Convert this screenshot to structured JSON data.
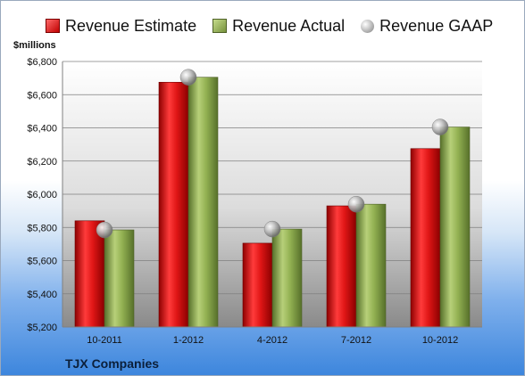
{
  "chart_data": {
    "type": "bar",
    "categories": [
      "10-2011",
      "1-2012",
      "4-2012",
      "7-2012",
      "10-2012"
    ],
    "series": [
      {
        "name": "Revenue Estimate",
        "values": [
          5840,
          6675,
          5705,
          5930,
          6275
        ],
        "color": "#cc1f1f"
      },
      {
        "name": "Revenue Actual",
        "values": [
          5785,
          6705,
          5790,
          5940,
          6405
        ],
        "color": "#8aa84a"
      },
      {
        "name": "Revenue GAAP",
        "values": [
          5785,
          6705,
          5790,
          5940,
          6405
        ],
        "marker": "gray-sphere"
      }
    ],
    "ylabel": "$millions",
    "ylim": [
      5200,
      6800
    ],
    "yticks": [
      "$5,200",
      "$5,400",
      "$5,600",
      "$5,800",
      "$6,000",
      "$6,200",
      "$6,400",
      "$6,600",
      "$6,800"
    ],
    "ytick_values": [
      5200,
      5400,
      5600,
      5800,
      6000,
      6200,
      6400,
      6600,
      6800
    ],
    "grid": true,
    "legend_position": "top"
  },
  "company": "TJX Companies"
}
